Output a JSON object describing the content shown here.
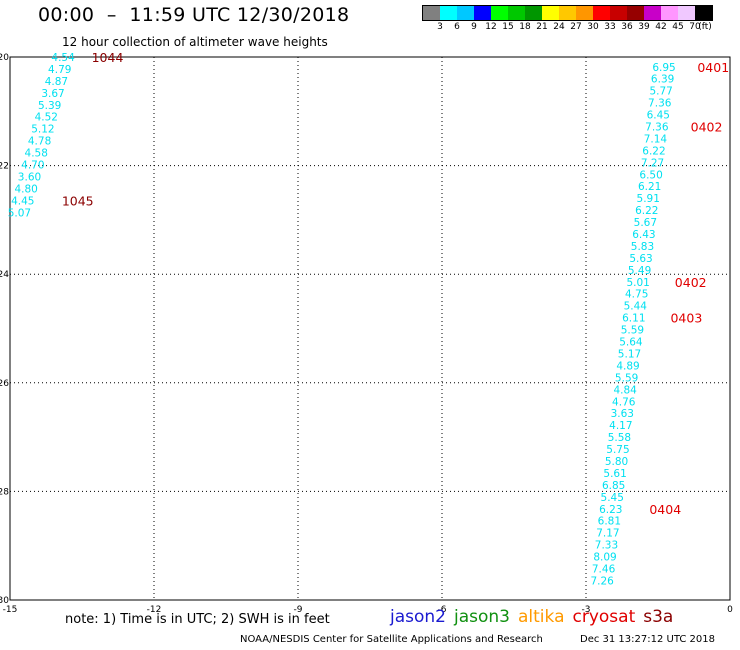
{
  "header": {
    "title": "00:00  –  11:59 UTC 12/30/2018",
    "subtitle": "12 hour collection of altimeter wave heights"
  },
  "legend": {
    "colors": [
      "#808080",
      "#00ffff",
      "#00c8ff",
      "#0000ff",
      "#00ff00",
      "#00c800",
      "#009600",
      "#ffff00",
      "#ffc800",
      "#ff9600",
      "#ff0000",
      "#c80000",
      "#960000",
      "#c800c8",
      "#ff96ff",
      "#f0c8ff",
      "#000000"
    ],
    "labels": [
      "3",
      "6",
      "9",
      "12",
      "15",
      "18",
      "21",
      "24",
      "27",
      "30",
      "33",
      "36",
      "39",
      "42",
      "45",
      "70",
      "(ft)"
    ]
  },
  "map": {
    "lon_range": [
      -15,
      0
    ],
    "lat_range": [
      -30,
      -20
    ],
    "lon_ticks": [
      "-15",
      "-12",
      "-9",
      "-6",
      "-3",
      "0"
    ],
    "lat_ticks": [
      "-20",
      "-22",
      "-24",
      "-26",
      "-28",
      "-30"
    ],
    "swh_color": "#00e0f0",
    "time_color_dark": "#8b0000",
    "time_color_red": "#e00000"
  },
  "tracks": [
    {
      "name": "west-track",
      "points": [
        {
          "lon": -13.65,
          "lat": -20.0,
          "swh": "4.54"
        },
        {
          "lon": -13.72,
          "lat": -20.22,
          "swh": "4.79"
        },
        {
          "lon": -13.79,
          "lat": -20.44,
          "swh": "4.87"
        },
        {
          "lon": -13.86,
          "lat": -20.66,
          "swh": "3.67"
        },
        {
          "lon": -13.93,
          "lat": -20.88,
          "swh": "5.39"
        },
        {
          "lon": -14.0,
          "lat": -21.1,
          "swh": "4.52"
        },
        {
          "lon": -14.07,
          "lat": -21.32,
          "swh": "5.12"
        },
        {
          "lon": -14.14,
          "lat": -21.54,
          "swh": "4.78"
        },
        {
          "lon": -14.21,
          "lat": -21.76,
          "swh": "4.58"
        },
        {
          "lon": -14.28,
          "lat": -21.98,
          "swh": "4.70"
        },
        {
          "lon": -14.35,
          "lat": -22.2,
          "swh": "3.60"
        },
        {
          "lon": -14.42,
          "lat": -22.42,
          "swh": "4.80"
        },
        {
          "lon": -14.49,
          "lat": -22.64,
          "swh": "4.45"
        },
        {
          "lon": -14.56,
          "lat": -22.86,
          "swh": "5.07"
        }
      ],
      "times": [
        {
          "lon": -13.3,
          "lat": -20.0,
          "text": "1044",
          "style": "dark"
        },
        {
          "lon": -13.92,
          "lat": -22.64,
          "text": "1045",
          "style": "dark"
        }
      ]
    },
    {
      "name": "east-track",
      "points": [
        {
          "lon": -1.13,
          "lat": -20.18,
          "swh": "6.95"
        },
        {
          "lon": -1.16,
          "lat": -20.4,
          "swh": "6.39"
        },
        {
          "lon": -1.19,
          "lat": -20.62,
          "swh": "5.77"
        },
        {
          "lon": -1.22,
          "lat": -20.84,
          "swh": "7.36"
        },
        {
          "lon": -1.25,
          "lat": -21.06,
          "swh": "6.45"
        },
        {
          "lon": -1.28,
          "lat": -21.28,
          "swh": "7.36"
        },
        {
          "lon": -1.31,
          "lat": -21.5,
          "swh": "7.14"
        },
        {
          "lon": -1.34,
          "lat": -21.72,
          "swh": "6.22"
        },
        {
          "lon": -1.37,
          "lat": -21.94,
          "swh": "7.27"
        },
        {
          "lon": -1.4,
          "lat": -22.16,
          "swh": "6.50"
        },
        {
          "lon": -1.43,
          "lat": -22.38,
          "swh": "6.21"
        },
        {
          "lon": -1.46,
          "lat": -22.6,
          "swh": "5.91"
        },
        {
          "lon": -1.49,
          "lat": -22.82,
          "swh": "6.22"
        },
        {
          "lon": -1.52,
          "lat": -23.04,
          "swh": "5.67"
        },
        {
          "lon": -1.55,
          "lat": -23.26,
          "swh": "6.43"
        },
        {
          "lon": -1.58,
          "lat": -23.48,
          "swh": "5.83"
        },
        {
          "lon": -1.61,
          "lat": -23.7,
          "swh": "5.63"
        },
        {
          "lon": -1.64,
          "lat": -23.92,
          "swh": "5.49"
        },
        {
          "lon": -1.67,
          "lat": -24.14,
          "swh": "5.01"
        },
        {
          "lon": -1.7,
          "lat": -24.36,
          "swh": "4.75"
        },
        {
          "lon": -1.73,
          "lat": -24.58,
          "swh": "5.44"
        },
        {
          "lon": -1.76,
          "lat": -24.8,
          "swh": "6.11"
        },
        {
          "lon": -1.79,
          "lat": -25.02,
          "swh": "5.59"
        },
        {
          "lon": -1.82,
          "lat": -25.24,
          "swh": "5.64"
        },
        {
          "lon": -1.85,
          "lat": -25.46,
          "swh": "5.17"
        },
        {
          "lon": -1.88,
          "lat": -25.68,
          "swh": "4.89"
        },
        {
          "lon": -1.91,
          "lat": -25.9,
          "swh": "5.59"
        },
        {
          "lon": -1.94,
          "lat": -26.12,
          "swh": "4.84"
        },
        {
          "lon": -1.97,
          "lat": -26.34,
          "swh": "4.76"
        },
        {
          "lon": -2.0,
          "lat": -26.56,
          "swh": "3.63"
        },
        {
          "lon": -2.03,
          "lat": -26.78,
          "swh": "4.17"
        },
        {
          "lon": -2.06,
          "lat": -27.0,
          "swh": "5.58"
        },
        {
          "lon": -2.09,
          "lat": -27.22,
          "swh": "5.75"
        },
        {
          "lon": -2.12,
          "lat": -27.44,
          "swh": "5.80"
        },
        {
          "lon": -2.15,
          "lat": -27.66,
          "swh": "5.61"
        },
        {
          "lon": -2.18,
          "lat": -27.88,
          "swh": "6.85"
        },
        {
          "lon": -2.21,
          "lat": -28.1,
          "swh": "5.45"
        },
        {
          "lon": -2.24,
          "lat": -28.32,
          "swh": "6.23"
        },
        {
          "lon": -2.27,
          "lat": -28.54,
          "swh": "6.81"
        },
        {
          "lon": -2.3,
          "lat": -28.76,
          "swh": "7.17"
        },
        {
          "lon": -2.33,
          "lat": -28.98,
          "swh": "7.33"
        },
        {
          "lon": -2.36,
          "lat": -29.2,
          "swh": "8.09"
        },
        {
          "lon": -2.39,
          "lat": -29.42,
          "swh": "7.46"
        },
        {
          "lon": -2.42,
          "lat": -29.64,
          "swh": "7.26"
        }
      ],
      "times": [
        {
          "lon": -0.68,
          "lat": -20.18,
          "text": "0401",
          "style": "red"
        },
        {
          "lon": -0.82,
          "lat": -21.28,
          "text": "0402",
          "style": "red"
        },
        {
          "lon": -1.15,
          "lat": -24.14,
          "text": "0402",
          "style": "red"
        },
        {
          "lon": -1.24,
          "lat": -24.8,
          "text": "0403",
          "style": "red"
        },
        {
          "lon": -1.68,
          "lat": -28.32,
          "text": "0404",
          "style": "red"
        }
      ]
    }
  ],
  "footer": {
    "note": "note:  1) Time is in UTC;  2) SWH is in feet",
    "satellites": [
      {
        "name": "jason2",
        "color": "#1a1ad0"
      },
      {
        "name": "jason3",
        "color": "#109010"
      },
      {
        "name": "altika",
        "color": "#ff9a00"
      },
      {
        "name": "cryosat",
        "color": "#e00000"
      },
      {
        "name": "s3a",
        "color": "#8b0000"
      }
    ],
    "credit": "NOAA/NESDIS Center for Satellite Applications and Research",
    "timestamp": "Dec 31 13:27:12 UTC 2018"
  }
}
